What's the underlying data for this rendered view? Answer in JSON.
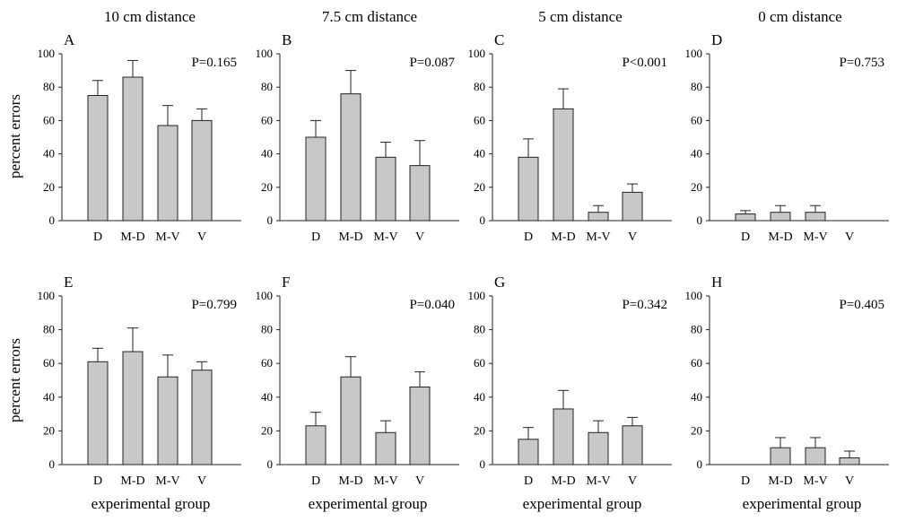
{
  "figure": {
    "column_titles": [
      "10 cm distance",
      "7.5 cm distance",
      "5 cm distance",
      "0 cm distance"
    ],
    "ylabel": "percent errors",
    "xlabel": "experimental group",
    "bar_color": "#c8c8c8",
    "axis_color": "#222222"
  },
  "chart_data": [
    {
      "panel": "A",
      "type": "bar",
      "title": "10 cm distance",
      "pvalue": "P=0.165",
      "categories": [
        "D",
        "M-D",
        "M-V",
        "V"
      ],
      "values": [
        75,
        86,
        57,
        60
      ],
      "errors": [
        9,
        10,
        12,
        7
      ],
      "ylim": [
        0,
        100
      ],
      "yticks": [
        0,
        20,
        40,
        60,
        80,
        100
      ],
      "ylabel": "percent errors",
      "xlabel": ""
    },
    {
      "panel": "B",
      "type": "bar",
      "title": "7.5 cm distance",
      "pvalue": "P=0.087",
      "categories": [
        "D",
        "M-D",
        "M-V",
        "V"
      ],
      "values": [
        50,
        76,
        38,
        33
      ],
      "errors": [
        10,
        14,
        9,
        15
      ],
      "ylim": [
        0,
        100
      ],
      "yticks": [
        0,
        20,
        40,
        60,
        80,
        100
      ],
      "ylabel": "",
      "xlabel": ""
    },
    {
      "panel": "C",
      "type": "bar",
      "title": "5 cm distance",
      "pvalue": "P<0.001",
      "categories": [
        "D",
        "M-D",
        "M-V",
        "V"
      ],
      "values": [
        38,
        67,
        5,
        17
      ],
      "errors": [
        11,
        12,
        4,
        5
      ],
      "ylim": [
        0,
        100
      ],
      "yticks": [
        0,
        20,
        40,
        60,
        80,
        100
      ],
      "ylabel": "",
      "xlabel": ""
    },
    {
      "panel": "D",
      "type": "bar",
      "title": "0 cm distance",
      "pvalue": "P=0.753",
      "categories": [
        "D",
        "M-D",
        "M-V",
        "V"
      ],
      "values": [
        4,
        5,
        5,
        0
      ],
      "errors": [
        2,
        4,
        4,
        0
      ],
      "ylim": [
        0,
        100
      ],
      "yticks": [
        0,
        20,
        40,
        60,
        80,
        100
      ],
      "ylabel": "",
      "xlabel": ""
    },
    {
      "panel": "E",
      "type": "bar",
      "title": "",
      "pvalue": "P=0.799",
      "categories": [
        "D",
        "M-D",
        "M-V",
        "V"
      ],
      "values": [
        61,
        67,
        52,
        56
      ],
      "errors": [
        8,
        14,
        13,
        5
      ],
      "ylim": [
        0,
        100
      ],
      "yticks": [
        0,
        20,
        40,
        60,
        80,
        100
      ],
      "ylabel": "percent errors",
      "xlabel": "experimental group"
    },
    {
      "panel": "F",
      "type": "bar",
      "title": "",
      "pvalue": "P=0.040",
      "categories": [
        "D",
        "M-D",
        "M-V",
        "V"
      ],
      "values": [
        23,
        52,
        19,
        46
      ],
      "errors": [
        8,
        12,
        7,
        9
      ],
      "ylim": [
        0,
        100
      ],
      "yticks": [
        0,
        20,
        40,
        60,
        80,
        100
      ],
      "ylabel": "",
      "xlabel": "experimental group"
    },
    {
      "panel": "G",
      "type": "bar",
      "title": "",
      "pvalue": "P=0.342",
      "categories": [
        "D",
        "M-D",
        "M-V",
        "V"
      ],
      "values": [
        15,
        33,
        19,
        23
      ],
      "errors": [
        7,
        11,
        7,
        5
      ],
      "ylim": [
        0,
        100
      ],
      "yticks": [
        0,
        20,
        40,
        60,
        80,
        100
      ],
      "ylabel": "",
      "xlabel": "experimental group"
    },
    {
      "panel": "H",
      "type": "bar",
      "title": "",
      "pvalue": "P=0.405",
      "categories": [
        "D",
        "M-D",
        "M-V",
        "V"
      ],
      "values": [
        0,
        10,
        10,
        4
      ],
      "errors": [
        0,
        6,
        6,
        4
      ],
      "ylim": [
        0,
        100
      ],
      "yticks": [
        0,
        20,
        40,
        60,
        80,
        100
      ],
      "ylabel": "",
      "xlabel": "experimental group"
    }
  ]
}
